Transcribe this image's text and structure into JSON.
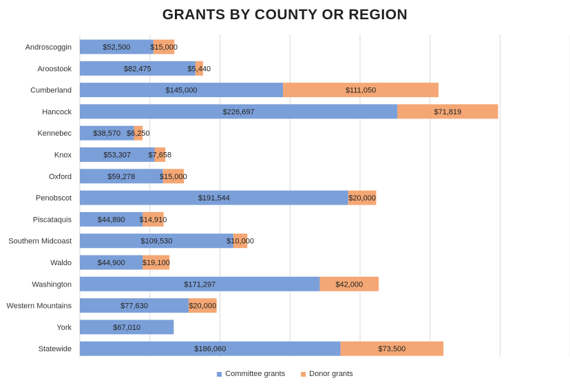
{
  "chart_data": {
    "type": "bar",
    "orientation": "horizontal",
    "stacked": true,
    "title": "GRANTS BY COUNTY OR REGION",
    "categories": [
      "Androscoggin",
      "Aroostook",
      "Cumberland",
      "Hancock",
      "Kennebec",
      "Knox",
      "Oxford",
      "Penobscot",
      "Piscataquis",
      "Southern Midcoast",
      "Waldo",
      "Washington",
      "Western Mountains",
      "York",
      "Statewide"
    ],
    "series": [
      {
        "name": "Committee grants",
        "color": "#7b9fd8",
        "values": [
          52500,
          82475,
          145000,
          226697,
          38570,
          53307,
          59278,
          191544,
          44890,
          109530,
          44900,
          171297,
          77630,
          67010,
          186060
        ],
        "labels": [
          "$52,500",
          "$82,475",
          "$145,000",
          "$226,697",
          "$38,570",
          "$53,307",
          "$59,278",
          "$191,544",
          "$44,890",
          "$109,530",
          "$44,900",
          "$171,297",
          "$77,630",
          "$67,010",
          "$186,060"
        ]
      },
      {
        "name": "Donor grants",
        "color": "#f4a774",
        "values": [
          15000,
          5440,
          111050,
          71819,
          6250,
          7658,
          15000,
          20000,
          14910,
          10000,
          19100,
          42000,
          20000,
          null,
          73500
        ],
        "labels": [
          "$15,000",
          "$5,440",
          "$111,050",
          "$71,819",
          "$6,250",
          "$7,658",
          "$15,000",
          "$20,000",
          "$14,910",
          "$10,000",
          "$19,100",
          "$42,000",
          "$20,000",
          "",
          "$73,500"
        ]
      }
    ],
    "xlim": [
      0,
      350000
    ],
    "grid": true,
    "legend": "bottom"
  }
}
